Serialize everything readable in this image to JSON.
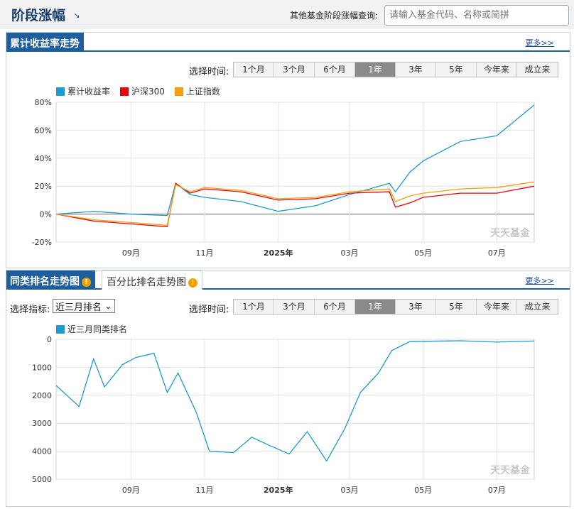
{
  "header": {
    "title": "阶段涨幅",
    "search_label": "其他基金阶段涨幅查询:",
    "search_placeholder": "请输入基金代码、名称或简拼"
  },
  "panel1": {
    "tab": "累计收益率走势",
    "more": "更多>>",
    "period_label": "选择时间:",
    "periods": [
      "1个月",
      "3个月",
      "6个月",
      "1年",
      "3年",
      "5年",
      "今年来",
      "成立来"
    ],
    "active_period": "1年",
    "legend": [
      {
        "label": "累计收益率",
        "color": "#1e9bd0"
      },
      {
        "label": "沪深300",
        "color": "#e8000b"
      },
      {
        "label": "上证指数",
        "color": "#f5a00a"
      }
    ],
    "watermark": "天天基金"
  },
  "panel2": {
    "tab_active": "同类排名走势图",
    "tab_inactive": "百分比排名走势图",
    "more": "更多>>",
    "indicator_label": "选择指标:",
    "indicator_value": "近三月排名",
    "period_label": "选择时间:",
    "periods": [
      "1个月",
      "3个月",
      "6个月",
      "1年",
      "3年",
      "5年",
      "今年来",
      "成立来"
    ],
    "active_period": "1年",
    "legend": [
      {
        "label": "近三月同类排名",
        "color": "#1e9bd0"
      }
    ],
    "watermark": "天天基金"
  },
  "chart_data": [
    {
      "type": "line",
      "x_ticks": [
        "09月",
        "11月",
        "2025年",
        "03月",
        "05月",
        "07月"
      ],
      "y_ticks": [
        "80%",
        "60%",
        "40%",
        "20%",
        "0%",
        "-20%"
      ],
      "ylim": [
        -20,
        80
      ],
      "y_unit": "%",
      "grid": true,
      "legend_position": "top-left",
      "x": [
        "2024-07",
        "2024-08",
        "2024-09",
        "2024-10-01",
        "2024-10-08",
        "2024-10-20",
        "2024-11",
        "2024-12",
        "2025-01",
        "2025-02",
        "2025-03",
        "2025-04-03",
        "2025-04-08",
        "2025-04-20",
        "2025-05",
        "2025-06",
        "2025-07",
        "2025-08"
      ],
      "series": [
        {
          "name": "累计收益率",
          "color": "#1e9bd0",
          "values": [
            0,
            2,
            0,
            -1,
            22,
            14,
            12,
            9,
            2,
            6,
            14,
            22,
            16,
            30,
            38,
            52,
            56,
            78
          ]
        },
        {
          "name": "沪深300",
          "color": "#e8000b",
          "values": [
            0,
            -5,
            -7,
            -9,
            22,
            15,
            18,
            16,
            10,
            11,
            15,
            16,
            5,
            8,
            12,
            15,
            15,
            20
          ]
        },
        {
          "name": "上证指数",
          "color": "#f5a00a",
          "values": [
            0,
            -4,
            -6,
            -8,
            21,
            16,
            19,
            17,
            11,
            12,
            16,
            18,
            9,
            13,
            15,
            18,
            19,
            23
          ]
        }
      ]
    },
    {
      "type": "line",
      "x_ticks": [
        "09月",
        "11月",
        "2025年",
        "03月",
        "05月",
        "07月"
      ],
      "y_ticks": [
        "0",
        "1000",
        "2000",
        "3000",
        "4000",
        "5000"
      ],
      "ylim": [
        5000,
        0
      ],
      "y_reversed": true,
      "grid": true,
      "legend_position": "top-left",
      "x": [
        "2024-07",
        "2024-07-20",
        "2024-08-01",
        "2024-08-10",
        "2024-08-25",
        "2024-09-05",
        "2024-09-20",
        "2024-10-01",
        "2024-10-10",
        "2024-10-25",
        "2024-11-05",
        "2024-11-25",
        "2024-12-10",
        "2024-12-25",
        "2025-01-10",
        "2025-01-25",
        "2025-02-10",
        "2025-02-25",
        "2025-03-10",
        "2025-03-25",
        "2025-04-05",
        "2025-04-20",
        "2025-05",
        "2025-06",
        "2025-07",
        "2025-08"
      ],
      "series": [
        {
          "name": "近三月同类排名",
          "color": "#1e9bd0",
          "values": [
            1650,
            2400,
            700,
            1700,
            900,
            650,
            500,
            1900,
            1200,
            2600,
            4000,
            4050,
            3500,
            3800,
            4100,
            3300,
            4350,
            3200,
            1900,
            1200,
            400,
            80,
            70,
            50,
            100,
            60
          ]
        }
      ]
    }
  ]
}
